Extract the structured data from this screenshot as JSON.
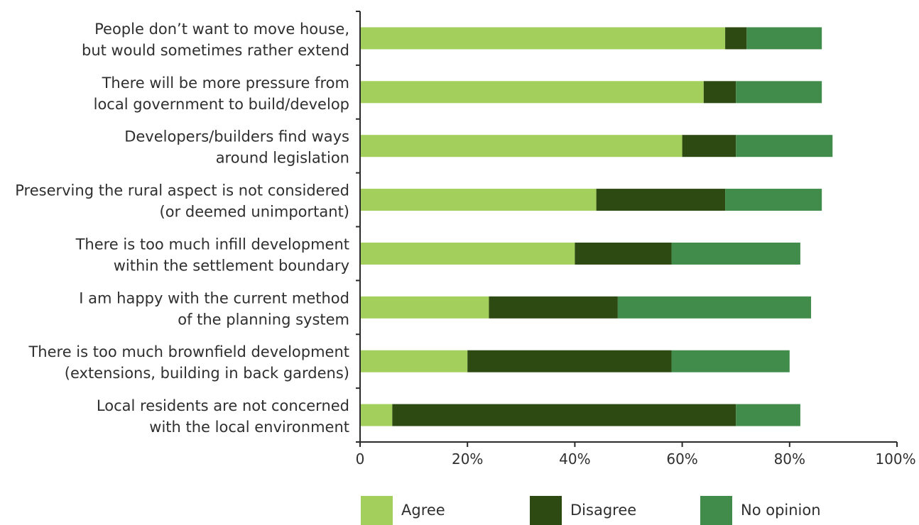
{
  "chart_data": {
    "type": "bar",
    "orientation": "horizontal",
    "stacked": true,
    "categories": [
      "People don’t want to move house,\nbut would sometimes rather extend",
      "There will be more pressure from\nlocal government to build/develop",
      "Developers/builders find ways\naround legislation",
      "Preserving the rural aspect is not considered\n(or deemed unimportant)",
      "There is too much infill development\nwithin the settlement boundary",
      "I am happy with the current method\nof the planning system",
      "There is too much brownfield development\n(extensions, building in back gardens)",
      "Local residents are not concerned\nwith the local environment"
    ],
    "series": [
      {
        "name": "Agree",
        "color": "#a3cf5c",
        "values": [
          68,
          64,
          60,
          44,
          40,
          24,
          20,
          6
        ]
      },
      {
        "name": "Disagree",
        "color": "#2d4a12",
        "values": [
          4,
          6,
          10,
          24,
          18,
          24,
          38,
          64
        ]
      },
      {
        "name": "No opinion",
        "color": "#428c4b",
        "values": [
          14,
          16,
          18,
          18,
          24,
          36,
          22,
          12
        ]
      }
    ],
    "x_ticks": [
      "0",
      "20%",
      "40%",
      "60%",
      "80%",
      "100%"
    ],
    "xlim": [
      0,
      100
    ],
    "grid": false,
    "legend_position": "bottom"
  }
}
